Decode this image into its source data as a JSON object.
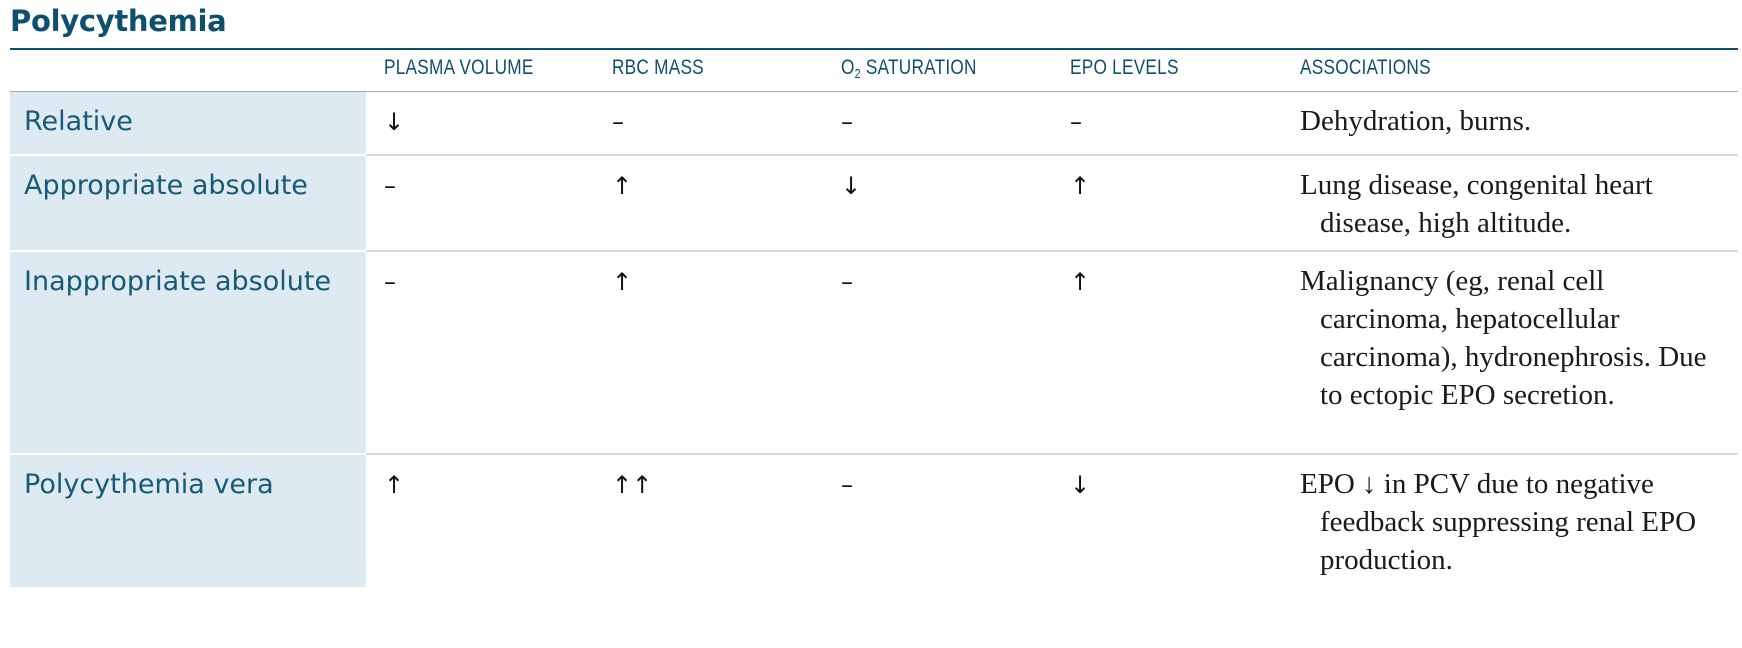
{
  "title": "Polycythemia",
  "headers": {
    "plasma_volume": "PLASMA VOLUME",
    "rbc_mass": "RBC MASS",
    "o2_saturation_pre": "O",
    "o2_saturation_sub": "2",
    "o2_saturation_post": " SATURATION",
    "epo_levels": "EPO LEVELS",
    "associations": "ASSOCIATIONS"
  },
  "rows": [
    {
      "label": "Relative",
      "plasma_volume": "↓",
      "rbc_mass": "–",
      "o2_saturation": "–",
      "epo_levels": "–",
      "associations": "Dehydration, burns."
    },
    {
      "label": "Appropriate absolute",
      "plasma_volume": "–",
      "rbc_mass": "↑",
      "o2_saturation": "↓",
      "epo_levels": "↑",
      "associations": "Lung disease, congenital heart disease, high altitude."
    },
    {
      "label": "Inappropriate absolute",
      "plasma_volume": "–",
      "rbc_mass": "↑",
      "o2_saturation": "–",
      "epo_levels": "↑",
      "associations": "Malignancy (eg, renal cell carcinoma, hepatocellular carcinoma), hydronephrosis. Due to ectopic EPO secretion."
    },
    {
      "label": "Polycythemia vera",
      "plasma_volume": "↑",
      "rbc_mass": "↑↑",
      "o2_saturation": "–",
      "epo_levels": "↓",
      "associations": "EPO ↓ in PCV due to negative feedback suppressing renal EPO production."
    }
  ],
  "colors": {
    "title": "#0f4f6e",
    "label_background": "#ddeaf1",
    "label_text": "#175a78"
  }
}
